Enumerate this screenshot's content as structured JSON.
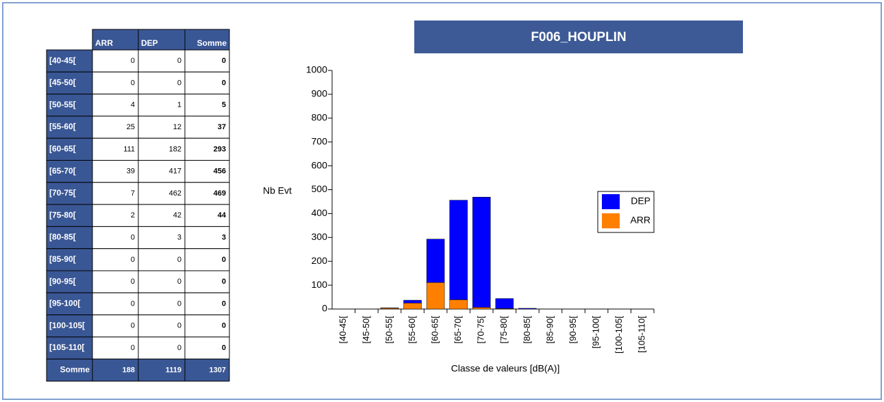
{
  "table": {
    "columns": [
      "ARR",
      "DEP",
      "Somme"
    ],
    "rows": [
      {
        "label": "[40-45[",
        "values": [
          0,
          0,
          0
        ]
      },
      {
        "label": "[45-50[",
        "values": [
          0,
          0,
          0
        ]
      },
      {
        "label": "[50-55[",
        "values": [
          4,
          1,
          5
        ]
      },
      {
        "label": "[55-60[",
        "values": [
          25,
          12,
          37
        ]
      },
      {
        "label": "[60-65[",
        "values": [
          111,
          182,
          293
        ]
      },
      {
        "label": "[65-70[",
        "values": [
          39,
          417,
          456
        ]
      },
      {
        "label": "[70-75[",
        "values": [
          7,
          462,
          469
        ]
      },
      {
        "label": "[75-80[",
        "values": [
          2,
          42,
          44
        ]
      },
      {
        "label": "[80-85[",
        "values": [
          0,
          3,
          3
        ]
      },
      {
        "label": "[85-90[",
        "values": [
          0,
          0,
          0
        ]
      },
      {
        "label": "[90-95[",
        "values": [
          0,
          0,
          0
        ]
      },
      {
        "label": "[95-100[",
        "values": [
          0,
          0,
          0
        ]
      },
      {
        "label": "[100-105[",
        "values": [
          0,
          0,
          0
        ]
      },
      {
        "label": "[105-110[",
        "values": [
          0,
          0,
          0
        ]
      }
    ],
    "total": {
      "label": "Somme",
      "values": [
        188,
        1119,
        1307
      ]
    }
  },
  "chart_data": {
    "type": "stacked_bar",
    "title": "F006_HOUPLIN",
    "y_label": "Nb Evt",
    "x_label": "Classe de valeurs [dB(A)]",
    "categories": [
      "[40-45[",
      "[45-50[",
      "[50-55[",
      "[55-60[",
      "[60-65[",
      "[65-70[",
      "[70-75[",
      "[75-80[",
      "[80-85[",
      "[85-90[",
      "[90-95[",
      "[95-100[",
      "[100-105[",
      "[105-110["
    ],
    "series": [
      {
        "name": "ARR",
        "color": "#ff8000",
        "values": [
          0,
          0,
          4,
          25,
          111,
          39,
          7,
          2,
          0,
          0,
          0,
          0,
          0,
          0
        ]
      },
      {
        "name": "DEP",
        "color": "#0000ff",
        "values": [
          0,
          0,
          1,
          12,
          182,
          417,
          462,
          42,
          3,
          0,
          0,
          0,
          0,
          0
        ]
      }
    ],
    "ylim": [
      0,
      1000
    ],
    "yticks": [
      0,
      100,
      200,
      300,
      400,
      500,
      600,
      700,
      800,
      900,
      1000
    ],
    "legend": "right"
  }
}
